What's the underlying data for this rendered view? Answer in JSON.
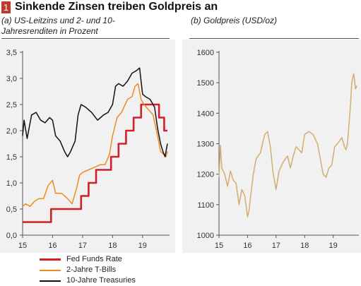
{
  "header": {
    "number": "1",
    "title": "Sinkende Zinsen treiben Goldpreis an"
  },
  "chart_data": [
    {
      "type": "line",
      "title": "(a) US-Leitzins und 2- und 10-Jahresrenditen in Prozent",
      "title_lines": [
        "(a) US-Leitzins und 2- und 10-",
        "Jahresrenditen in Prozent"
      ],
      "xlim": [
        15,
        19.9
      ],
      "ylim": [
        0,
        3.5
      ],
      "x_ticks": [
        15,
        16,
        17,
        18,
        19
      ],
      "x_tick_labels": [
        "15",
        "16",
        "17",
        "18",
        "19"
      ],
      "y_ticks": [
        0,
        0.5,
        1.0,
        1.5,
        2.0,
        2.5,
        3.0,
        3.5
      ],
      "y_tick_labels": [
        "0,0",
        "0,5",
        "1,0",
        "1,5",
        "2,0",
        "2,5",
        "3,0",
        "3,5"
      ],
      "grid": "none",
      "legend_position": "bottom",
      "series": [
        {
          "name": "Fed Funds Rate",
          "color": "#d21f2a",
          "step": true,
          "x": [
            15,
            15.95,
            15.95,
            16.95,
            16.95,
            17.2,
            17.2,
            17.45,
            17.45,
            17.95,
            17.95,
            18.2,
            18.2,
            18.45,
            18.45,
            18.7,
            18.7,
            18.95,
            18.95,
            19.55,
            19.55,
            19.72,
            19.72,
            19.83
          ],
          "values": [
            0.25,
            0.25,
            0.5,
            0.5,
            0.75,
            0.75,
            1.0,
            1.0,
            1.25,
            1.25,
            1.5,
            1.5,
            1.75,
            1.75,
            2.0,
            2.0,
            2.25,
            2.25,
            2.5,
            2.5,
            2.25,
            2.25,
            2.0,
            2.0
          ]
        },
        {
          "name": "2-Jahre T-Bills",
          "color": "#f08a1c",
          "x": [
            15,
            15.1,
            15.25,
            15.4,
            15.55,
            15.7,
            15.85,
            16.0,
            16.1,
            16.3,
            16.5,
            16.65,
            16.8,
            16.9,
            17.0,
            17.2,
            17.4,
            17.6,
            17.75,
            17.9,
            18.0,
            18.15,
            18.3,
            18.5,
            18.65,
            18.75,
            18.85,
            18.95,
            19.05,
            19.2,
            19.35,
            19.5,
            19.6,
            19.7,
            19.78,
            19.83
          ],
          "values": [
            0.55,
            0.6,
            0.55,
            0.65,
            0.7,
            0.7,
            0.95,
            1.05,
            0.8,
            0.8,
            0.7,
            0.6,
            0.9,
            1.15,
            1.2,
            1.25,
            1.3,
            1.35,
            1.35,
            1.55,
            1.9,
            2.25,
            2.35,
            2.6,
            2.65,
            2.85,
            2.9,
            2.6,
            2.5,
            2.4,
            2.3,
            1.9,
            1.6,
            1.55,
            1.5,
            1.6
          ]
        },
        {
          "name": "10-Jahre Treasuries",
          "color": "#111111",
          "x": [
            15,
            15.05,
            15.15,
            15.3,
            15.45,
            15.6,
            15.75,
            15.9,
            16.0,
            16.1,
            16.25,
            16.4,
            16.5,
            16.6,
            16.75,
            16.85,
            16.95,
            17.1,
            17.3,
            17.5,
            17.6,
            17.7,
            17.85,
            18.0,
            18.1,
            18.2,
            18.35,
            18.5,
            18.65,
            18.8,
            18.9,
            19.0,
            19.1,
            19.25,
            19.4,
            19.5,
            19.6,
            19.68,
            19.75,
            19.83
          ],
          "values": [
            1.9,
            2.2,
            1.85,
            2.3,
            2.35,
            2.2,
            2.15,
            2.25,
            2.2,
            1.9,
            1.8,
            1.6,
            1.5,
            1.6,
            1.8,
            2.3,
            2.5,
            2.45,
            2.35,
            2.2,
            2.25,
            2.3,
            2.35,
            2.5,
            2.85,
            2.9,
            2.85,
            2.95,
            3.1,
            3.15,
            3.2,
            2.7,
            2.65,
            2.6,
            2.45,
            2.05,
            1.75,
            1.6,
            1.5,
            1.75
          ]
        }
      ]
    },
    {
      "type": "line",
      "title": "(b) Goldpreis (USD/oz)",
      "xlim": [
        15,
        19.9
      ],
      "ylim": [
        1000,
        1600
      ],
      "x_ticks": [
        15,
        16,
        17,
        18,
        19
      ],
      "x_tick_labels": [
        "15",
        "16",
        "17",
        "18",
        "19"
      ],
      "y_ticks": [
        1000,
        1100,
        1200,
        1300,
        1400,
        1500,
        1600
      ],
      "y_tick_labels": [
        "1000",
        "1100",
        "1200",
        "1300",
        "1400",
        "1500",
        "1600"
      ],
      "grid": "none",
      "series": [
        {
          "color": "#d2ad6e",
          "x": [
            15,
            15.05,
            15.1,
            15.2,
            15.3,
            15.4,
            15.5,
            15.6,
            15.7,
            15.8,
            15.9,
            16.0,
            16.05,
            16.1,
            16.2,
            16.3,
            16.45,
            16.6,
            16.7,
            16.8,
            16.9,
            17.0,
            17.1,
            17.25,
            17.4,
            17.5,
            17.6,
            17.7,
            17.8,
            17.9,
            18.0,
            18.15,
            18.3,
            18.45,
            18.55,
            18.65,
            18.75,
            18.85,
            18.95,
            19.05,
            19.15,
            19.3,
            19.4,
            19.45,
            19.5,
            19.55,
            19.6,
            19.65,
            19.72,
            19.78,
            19.83
          ],
          "values": [
            1190,
            1295,
            1220,
            1200,
            1160,
            1210,
            1180,
            1170,
            1100,
            1150,
            1130,
            1060,
            1080,
            1120,
            1200,
            1250,
            1270,
            1330,
            1340,
            1290,
            1200,
            1150,
            1210,
            1240,
            1260,
            1220,
            1260,
            1290,
            1280,
            1270,
            1330,
            1340,
            1330,
            1300,
            1250,
            1200,
            1190,
            1220,
            1230,
            1290,
            1300,
            1320,
            1290,
            1280,
            1300,
            1360,
            1420,
            1500,
            1530,
            1480,
            1490
          ]
        }
      ]
    }
  ]
}
